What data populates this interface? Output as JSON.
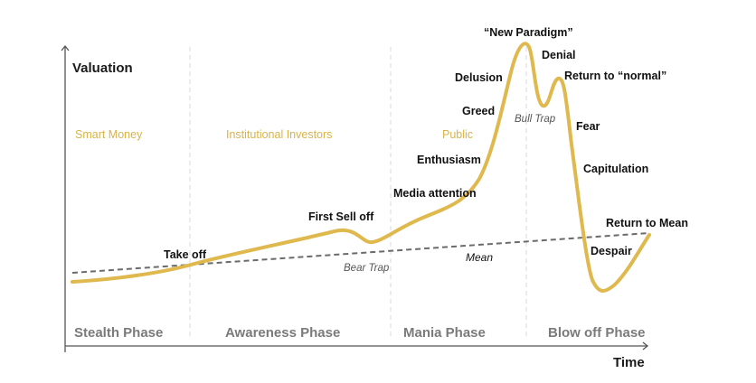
{
  "axes": {
    "y_label": "Valuation",
    "x_label": "Time"
  },
  "groups": [
    "Smart Money",
    "Institutional Investors",
    "Public"
  ],
  "phases": [
    "Stealth Phase",
    "Awareness Phase",
    "Mania Phase",
    "Blow off Phase"
  ],
  "stages": {
    "take_off": "Take off",
    "first_sell_off": "First Sell off",
    "bear_trap": "Bear Trap",
    "media_attention": "Media attention",
    "enthusiasm": "Enthusiasm",
    "greed": "Greed",
    "delusion": "Delusion",
    "new_paradigm": "“New Paradigm”",
    "denial": "Denial",
    "bull_trap": "Bull Trap",
    "return_to_normal": "Return to “normal”",
    "fear": "Fear",
    "capitulation": "Capitulation",
    "despair": "Despair",
    "return_to_mean": "Return to Mean",
    "mean": "Mean"
  },
  "colors": {
    "curve": "#dfb84e",
    "group_text": "#d9b34a",
    "phase_text": "#7a7a7a",
    "mean_line": "#6b6b6b"
  }
}
